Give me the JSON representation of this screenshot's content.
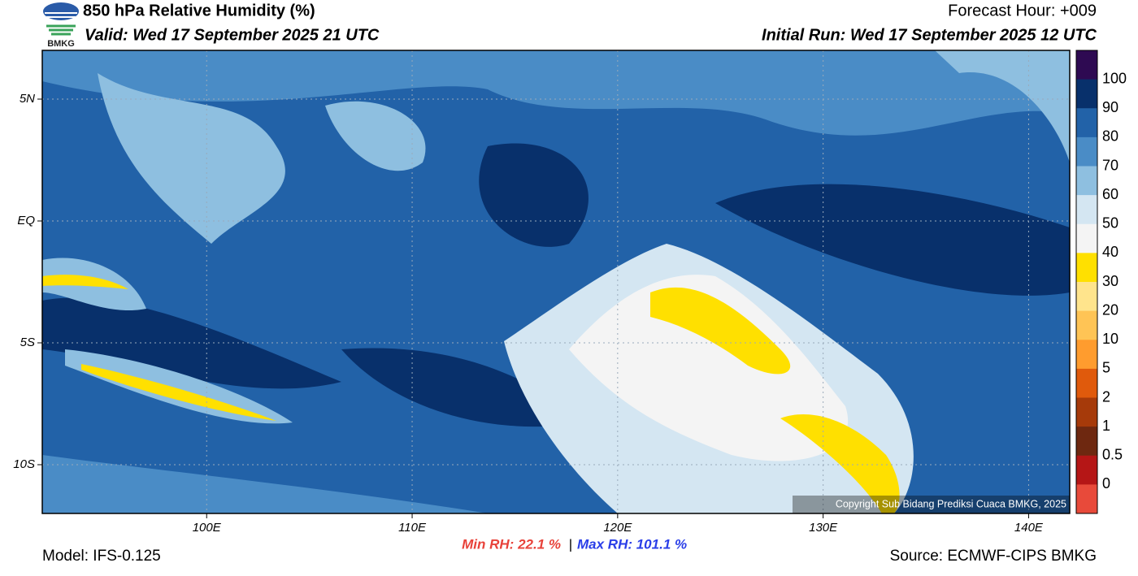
{
  "header": {
    "title": "850 hPa Relative Humidity (%)",
    "valid": "Valid: Wed 17 September 2025 21 UTC",
    "forecast_hour": "Forecast Hour: +009",
    "initial_run": "Initial Run: Wed 17 September 2025 12 UTC",
    "logo": "BMKG"
  },
  "map": {
    "lon_range": [
      92,
      142
    ],
    "lat_range": [
      -12,
      7
    ],
    "lat_ticks": [
      {
        "value": 5,
        "label": "5N"
      },
      {
        "value": 0,
        "label": "EQ"
      },
      {
        "value": -5,
        "label": "5S"
      },
      {
        "value": -10,
        "label": "10S"
      }
    ],
    "lon_ticks": [
      {
        "value": 100,
        "label": "100E"
      },
      {
        "value": 110,
        "label": "110E"
      },
      {
        "value": 120,
        "label": "120E"
      },
      {
        "value": 130,
        "label": "130E"
      },
      {
        "value": 140,
        "label": "140E"
      }
    ],
    "copyright": "Copyright Sub Bidang Prediksi Cuaca BMKG, 2025"
  },
  "colorbar": {
    "labels": [
      "100",
      "90",
      "80",
      "70",
      "60",
      "50",
      "40",
      "30",
      "20",
      "10",
      "5",
      "2",
      "1",
      "0.5",
      "0"
    ],
    "colors": [
      "#2e0a52",
      "#08306b",
      "#2262a8",
      "#4a8cc6",
      "#8ebfe0",
      "#d4e6f2",
      "#f4f4f4",
      "#ffe000",
      "#ffe48c",
      "#ffc455",
      "#ff9c2e",
      "#e05a0c",
      "#a63a0a",
      "#6e2810",
      "#b51616",
      "#e84a3a"
    ]
  },
  "stats": {
    "min": "Min RH:  22.1 %",
    "separator": "|",
    "max": "Max RH: 101.1 %"
  },
  "footer": {
    "model": "Model: IFS-0.125",
    "source": "Source: ECMWF-CIPS BMKG"
  }
}
